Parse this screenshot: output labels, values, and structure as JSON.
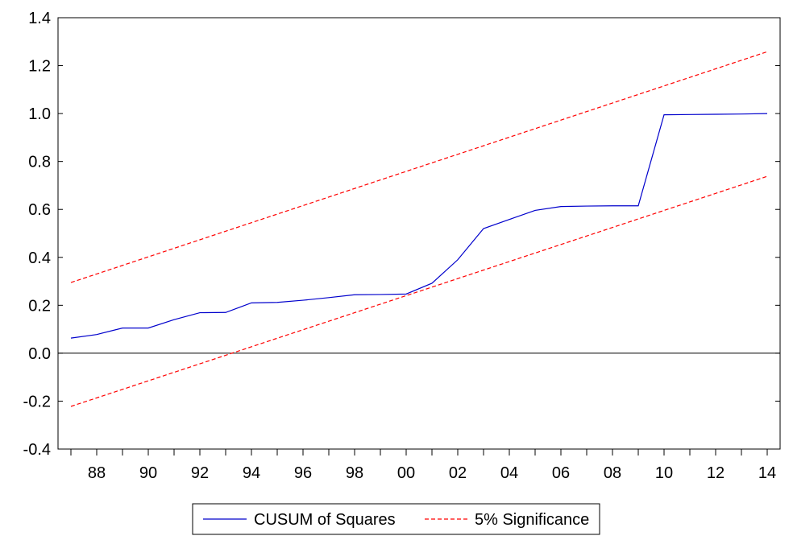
{
  "chart_data": {
    "type": "line",
    "title": "",
    "xlabel": "",
    "ylabel": "",
    "ylim": [
      -0.4,
      1.4
    ],
    "yticks": [
      "-0.4",
      "-0.2",
      "0.0",
      "0.2",
      "0.4",
      "0.6",
      "0.8",
      "1.0",
      "1.2",
      "1.4"
    ],
    "xlim": [
      1986.5,
      2014.5
    ],
    "xtick_labels": [
      "88",
      "90",
      "92",
      "94",
      "96",
      "98",
      "00",
      "02",
      "04",
      "06",
      "08",
      "10",
      "12",
      "14"
    ],
    "xtick_years": [
      1988,
      1990,
      1992,
      1994,
      1996,
      1998,
      2000,
      2002,
      2004,
      2006,
      2008,
      2010,
      2012,
      2014
    ],
    "zero_line": true,
    "legend_position": "bottom-center",
    "series": [
      {
        "name": "CUSUM of Squares",
        "color": "#0000cc",
        "style": "solid",
        "x": [
          1987,
          1988,
          1989,
          1990,
          1991,
          1992,
          1993,
          1994,
          1995,
          1996,
          1997,
          1998,
          1999,
          2000,
          2001,
          2002,
          2003,
          2004,
          2005,
          2006,
          2007,
          2008,
          2009,
          2010,
          2011,
          2012,
          2013,
          2014
        ],
        "values": [
          0.063,
          0.078,
          0.105,
          0.105,
          0.14,
          0.169,
          0.17,
          0.21,
          0.212,
          0.221,
          0.232,
          0.244,
          0.245,
          0.247,
          0.292,
          0.39,
          0.52,
          0.558,
          0.596,
          0.612,
          0.614,
          0.615,
          0.615,
          0.995,
          0.996,
          0.997,
          0.998,
          1.0
        ]
      },
      {
        "name": "5% Significance",
        "color": "#ff0000",
        "style": "dashed",
        "x": [
          1987,
          2014
        ],
        "values": [
          0.295,
          1.258
        ]
      },
      {
        "name": "",
        "color": "#ff0000",
        "style": "dashed",
        "x": [
          1987,
          2014
        ],
        "values": [
          -0.222,
          0.738
        ]
      }
    ]
  }
}
